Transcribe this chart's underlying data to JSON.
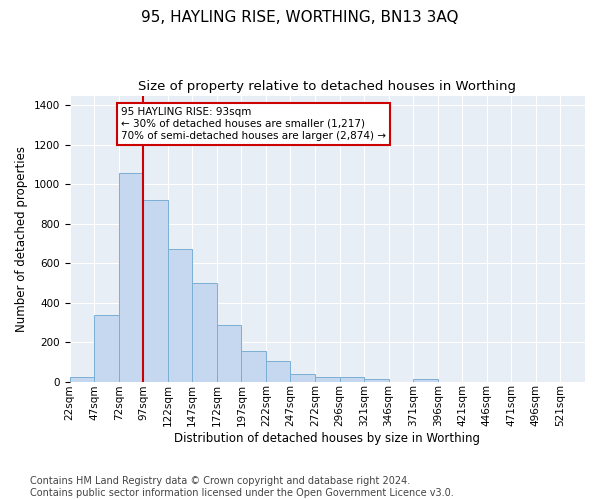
{
  "title": "95, HAYLING RISE, WORTHING, BN13 3AQ",
  "subtitle": "Size of property relative to detached houses in Worthing",
  "xlabel": "Distribution of detached houses by size in Worthing",
  "ylabel": "Number of detached properties",
  "bar_color": "#c5d8ef",
  "bar_edge_color": "#7bafd4",
  "background_color": "#e8eef5",
  "grid_color": "#ffffff",
  "annotation_box_color": "#cc0000",
  "annotation_text": "95 HAYLING RISE: 93sqm\n← 30% of detached houses are smaller (1,217)\n70% of semi-detached houses are larger (2,874) →",
  "vline_color": "#cc0000",
  "vline_bin_index": 2,
  "categories": [
    "22sqm",
    "47sqm",
    "72sqm",
    "97sqm",
    "122sqm",
    "147sqm",
    "172sqm",
    "197sqm",
    "222sqm",
    "247sqm",
    "272sqm",
    "296sqm",
    "321sqm",
    "346sqm",
    "371sqm",
    "396sqm",
    "421sqm",
    "446sqm",
    "471sqm",
    "496sqm",
    "521sqm"
  ],
  "bar_heights": [
    22,
    335,
    1055,
    920,
    670,
    500,
    285,
    155,
    105,
    38,
    25,
    22,
    15,
    0,
    12,
    0,
    0,
    0,
    0,
    0,
    0
  ],
  "ylim": [
    0,
    1450
  ],
  "yticks": [
    0,
    200,
    400,
    600,
    800,
    1000,
    1200,
    1400
  ],
  "footer": "Contains HM Land Registry data © Crown copyright and database right 2024.\nContains public sector information licensed under the Open Government Licence v3.0.",
  "footer_fontsize": 7.0,
  "title_fontsize": 11,
  "subtitle_fontsize": 9.5,
  "xlabel_fontsize": 8.5,
  "ylabel_fontsize": 8.5,
  "tick_fontsize": 7.5,
  "ann_fontsize": 7.5
}
